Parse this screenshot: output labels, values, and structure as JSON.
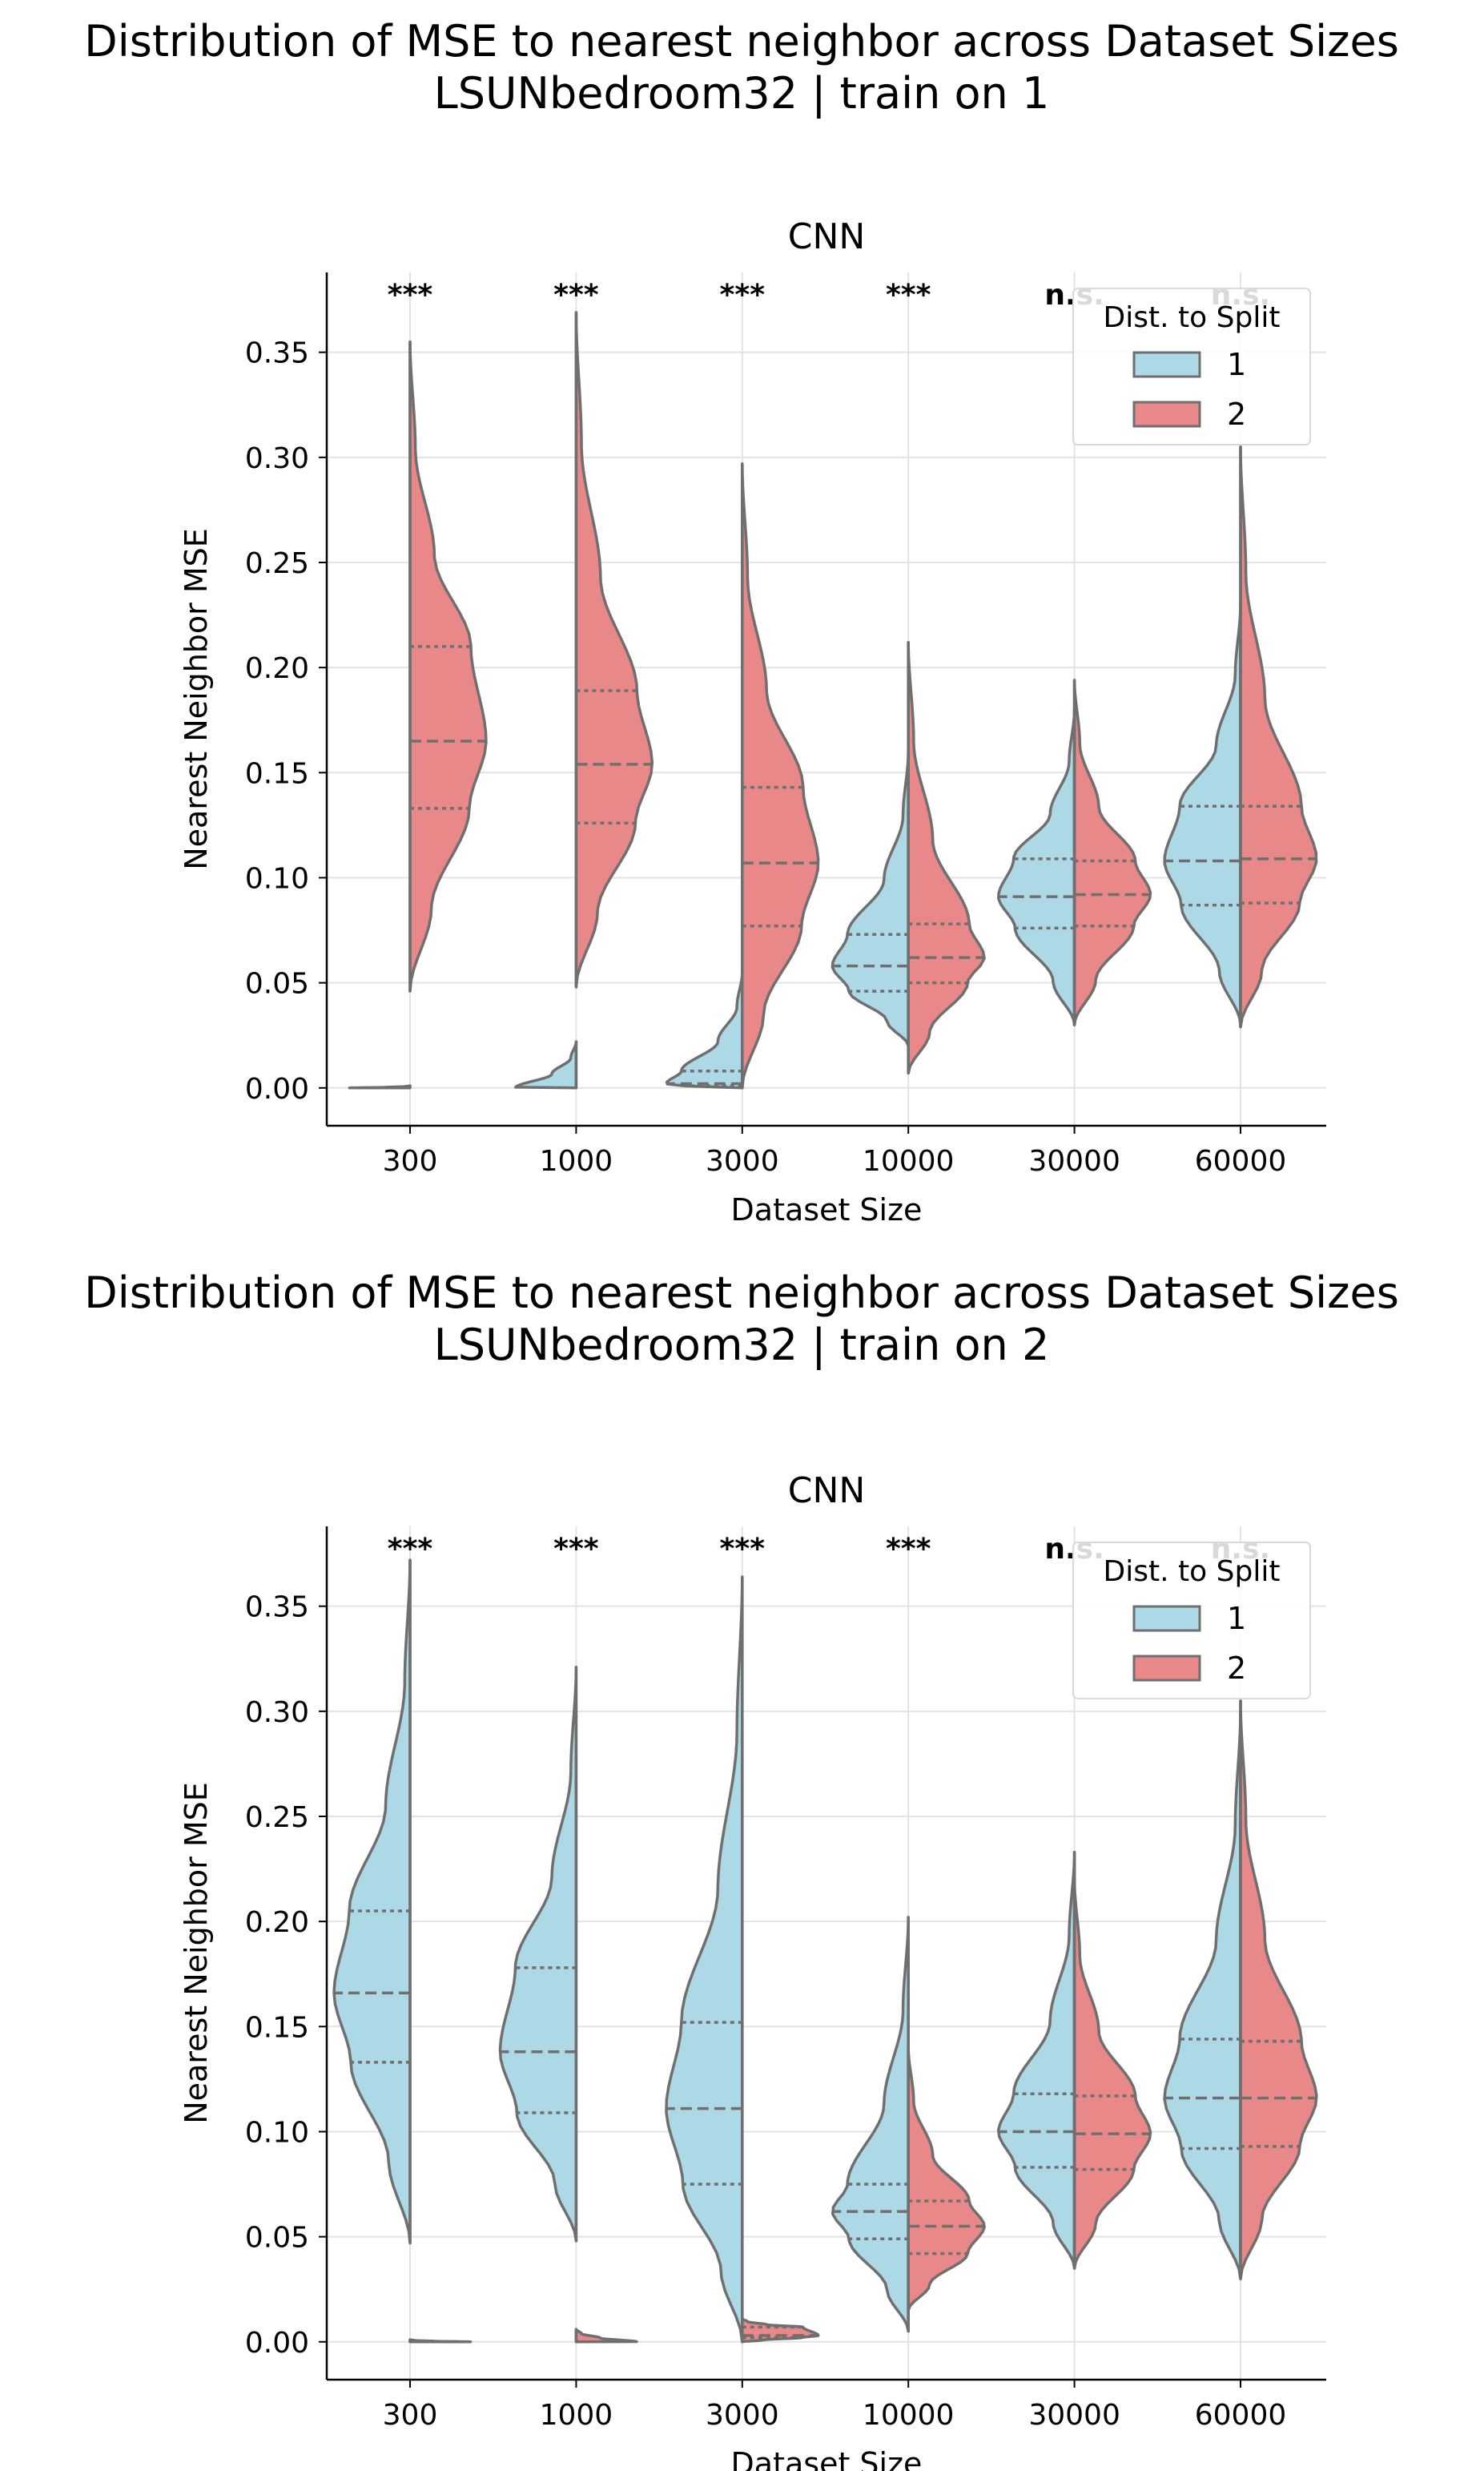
{
  "colors": {
    "split1": "#add8e6",
    "split2": "#e88888",
    "outline": "#6f6f6f"
  },
  "chart_data": [
    {
      "type": "violin",
      "suptitle_line1": "Distribution of MSE to nearest neighbor across Dataset Sizes",
      "suptitle_line2": "LSUNbedroom32 | train on 1",
      "title": "CNN",
      "xlabel": "Dataset Size",
      "ylabel": "Nearest Neighbor MSE",
      "ylim": [
        -0.018,
        0.388
      ],
      "yticks": [
        "0.00",
        "0.05",
        "0.10",
        "0.15",
        "0.20",
        "0.25",
        "0.30",
        "0.35"
      ],
      "categories": [
        "300",
        "1000",
        "3000",
        "10000",
        "30000",
        "60000"
      ],
      "significance": [
        "***",
        "***",
        "***",
        "***",
        "n.s.",
        "n.s."
      ],
      "legend": {
        "title": "Dist. to Split",
        "entries": [
          "1",
          "2"
        ],
        "position": "upper right"
      },
      "grid": true,
      "series": [
        {
          "name": "1",
          "groups": [
            {
              "min": 0.0,
              "q1": 0.0,
              "median": 0.0,
              "q3": 0.0,
              "max": 0.001
            },
            {
              "min": 0.0,
              "q1": 0.0,
              "median": 0.0,
              "q3": 0.0,
              "max": 0.022
            },
            {
              "min": 0.0,
              "q1": 0.001,
              "median": 0.002,
              "q3": 0.008,
              "max": 0.055
            },
            {
              "min": 0.02,
              "q1": 0.046,
              "median": 0.058,
              "q3": 0.073,
              "max": 0.16
            },
            {
              "min": 0.03,
              "q1": 0.076,
              "median": 0.091,
              "q3": 0.109,
              "max": 0.18
            },
            {
              "min": 0.03,
              "q1": 0.087,
              "median": 0.108,
              "q3": 0.134,
              "max": 0.23
            }
          ]
        },
        {
          "name": "2",
          "groups": [
            {
              "min": 0.046,
              "q1": 0.133,
              "median": 0.165,
              "q3": 0.21,
              "max": 0.355
            },
            {
              "min": 0.048,
              "q1": 0.126,
              "median": 0.154,
              "q3": 0.189,
              "max": 0.369
            },
            {
              "min": 0.0,
              "q1": 0.077,
              "median": 0.107,
              "q3": 0.143,
              "max": 0.297
            },
            {
              "min": 0.007,
              "q1": 0.05,
              "median": 0.062,
              "q3": 0.078,
              "max": 0.212
            },
            {
              "min": 0.03,
              "q1": 0.077,
              "median": 0.092,
              "q3": 0.108,
              "max": 0.194
            },
            {
              "min": 0.029,
              "q1": 0.088,
              "median": 0.109,
              "q3": 0.134,
              "max": 0.305
            }
          ]
        }
      ]
    },
    {
      "type": "violin",
      "suptitle_line1": "Distribution of MSE to nearest neighbor across Dataset Sizes",
      "suptitle_line2": "LSUNbedroom32 | train on 2",
      "title": "CNN",
      "xlabel": "Dataset Size",
      "ylabel": "Nearest Neighbor MSE",
      "ylim": [
        -0.018,
        0.388
      ],
      "yticks": [
        "0.00",
        "0.05",
        "0.10",
        "0.15",
        "0.20",
        "0.25",
        "0.30",
        "0.35"
      ],
      "categories": [
        "300",
        "1000",
        "3000",
        "10000",
        "30000",
        "60000"
      ],
      "significance": [
        "***",
        "***",
        "***",
        "***",
        "n.s.",
        "n.s."
      ],
      "legend": {
        "title": "Dist. to Split",
        "entries": [
          "1",
          "2"
        ],
        "position": "upper right"
      },
      "grid": true,
      "series": [
        {
          "name": "1",
          "groups": [
            {
              "min": 0.047,
              "q1": 0.133,
              "median": 0.166,
              "q3": 0.205,
              "max": 0.372
            },
            {
              "min": 0.048,
              "q1": 0.109,
              "median": 0.138,
              "q3": 0.178,
              "max": 0.321
            },
            {
              "min": 0.0,
              "q1": 0.075,
              "median": 0.111,
              "q3": 0.152,
              "max": 0.364
            },
            {
              "min": 0.005,
              "q1": 0.049,
              "median": 0.062,
              "q3": 0.075,
              "max": 0.202
            },
            {
              "min": 0.035,
              "q1": 0.083,
              "median": 0.1,
              "q3": 0.118,
              "max": 0.233
            },
            {
              "min": 0.03,
              "q1": 0.092,
              "median": 0.116,
              "q3": 0.144,
              "max": 0.3
            }
          ]
        },
        {
          "name": "2",
          "groups": [
            {
              "min": 0.0,
              "q1": 0.0,
              "median": 0.0,
              "q3": 0.0,
              "max": 0.001
            },
            {
              "min": 0.0,
              "q1": 0.0,
              "median": 0.0,
              "q3": 0.0,
              "max": 0.006
            },
            {
              "min": 0.0,
              "q1": 0.002,
              "median": 0.003,
              "q3": 0.007,
              "max": 0.011
            },
            {
              "min": 0.015,
              "q1": 0.042,
              "median": 0.055,
              "q3": 0.067,
              "max": 0.14
            },
            {
              "min": 0.035,
              "q1": 0.082,
              "median": 0.099,
              "q3": 0.117,
              "max": 0.22
            },
            {
              "min": 0.03,
              "q1": 0.093,
              "median": 0.116,
              "q3": 0.143,
              "max": 0.305
            }
          ]
        }
      ]
    }
  ]
}
